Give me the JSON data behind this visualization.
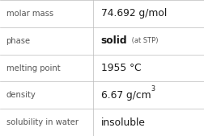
{
  "rows": [
    {
      "label": "molar mass",
      "value_parts": [
        {
          "text": "74.692 g/mol",
          "style": "normal"
        }
      ]
    },
    {
      "label": "phase",
      "value_parts": [
        {
          "text": "solid",
          "style": "bold"
        },
        {
          "text": " (at STP)",
          "style": "small"
        }
      ]
    },
    {
      "label": "melting point",
      "value_parts": [
        {
          "text": "1955 °C",
          "style": "normal"
        }
      ]
    },
    {
      "label": "density",
      "value_parts": [
        {
          "text": "6.67 g/cm",
          "style": "normal"
        },
        {
          "text": "3",
          "style": "super"
        }
      ]
    },
    {
      "label": "solubility in water",
      "value_parts": [
        {
          "text": "insoluble",
          "style": "normal"
        }
      ]
    }
  ],
  "bg_color": "#ffffff",
  "line_color": "#bbbbbb",
  "label_color": "#555555",
  "value_color": "#1a1a1a",
  "col_split": 0.455,
  "label_fontsize": 7.2,
  "value_fontsize": 8.8,
  "small_fontsize": 6.0,
  "super_fontsize": 5.8,
  "fig_width": 2.52,
  "fig_height": 1.69,
  "dpi": 100
}
